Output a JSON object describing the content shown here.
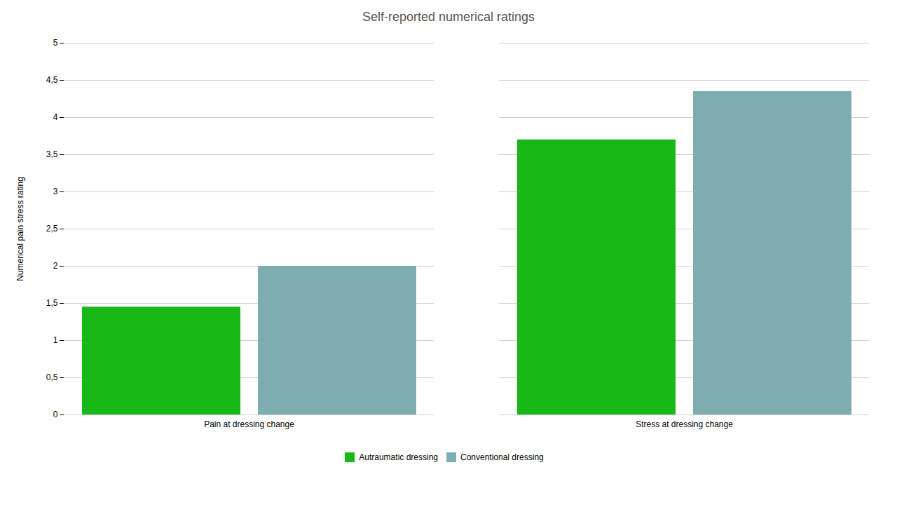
{
  "chart_data": {
    "type": "bar",
    "title": "Self-reported numerical ratings",
    "ylabel": "Numerical pain stress rating",
    "categories": [
      "Pain at dressing change",
      "Stress at dressing change"
    ],
    "series": [
      {
        "name": "Autraumatic dressing",
        "color": "#18b818",
        "values": [
          1.45,
          3.7
        ]
      },
      {
        "name": "Conventional dressing",
        "color": "#7eadb0",
        "values": [
          2.0,
          4.35
        ]
      }
    ],
    "ylim": [
      0,
      5
    ],
    "yticks": [
      0,
      {
        "value": 0.5,
        "label": "0,5"
      },
      1,
      {
        "value": 1.5,
        "label": "1,5"
      },
      2,
      {
        "value": 2.5,
        "label": "2,5"
      },
      3,
      {
        "value": 3.5,
        "label": "3,5"
      },
      4,
      {
        "value": 4.5,
        "label": "4,5"
      },
      5
    ],
    "grid": true,
    "legend": "bottom"
  }
}
